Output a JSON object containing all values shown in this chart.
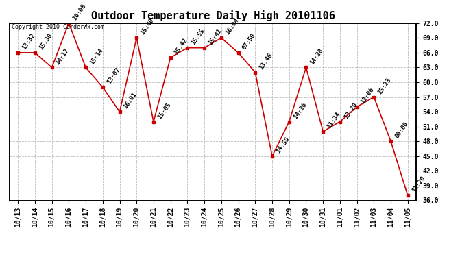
{
  "title": "Outdoor Temperature Daily High 20101106",
  "copyright_text": "Copyright 2010 CarderWx.com",
  "x_labels": [
    "10/13",
    "10/14",
    "10/15",
    "10/16",
    "10/17",
    "10/18",
    "10/19",
    "10/20",
    "10/21",
    "10/22",
    "10/23",
    "10/24",
    "10/25",
    "10/26",
    "10/27",
    "10/28",
    "10/29",
    "10/30",
    "10/31",
    "11/01",
    "11/02",
    "11/03",
    "11/04",
    "11/05"
  ],
  "y_values": [
    66.0,
    66.0,
    63.0,
    72.0,
    63.0,
    59.0,
    54.0,
    69.0,
    52.0,
    65.0,
    67.0,
    67.0,
    69.0,
    66.0,
    62.0,
    45.0,
    52.0,
    63.0,
    50.0,
    52.0,
    55.0,
    57.0,
    48.0,
    37.0
  ],
  "point_labels": [
    "13:32",
    "15:30",
    "14:17",
    "16:08",
    "15:14",
    "13:07",
    "16:01",
    "15:40",
    "15:05",
    "15:42",
    "15:55",
    "15:41",
    "16:04",
    "07:50",
    "13:46",
    "14:59",
    "14:36",
    "14:28",
    "11:34",
    "13:20",
    "13:06",
    "15:23",
    "00:00",
    "11:20"
  ],
  "y_min": 36.0,
  "y_max": 72.0,
  "y_tick_step": 3.0,
  "line_color": "#cc0000",
  "marker_color": "#cc0000",
  "bg_color": "#ffffff",
  "grid_color": "#bbbbbb",
  "title_fontsize": 11,
  "label_fontsize": 6.5,
  "tick_fontsize": 7,
  "copyright_fontsize": 6
}
